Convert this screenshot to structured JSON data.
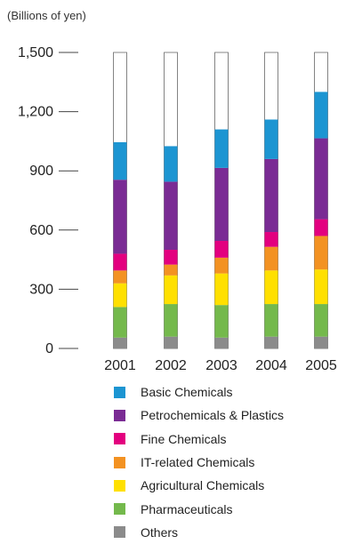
{
  "chart_data": {
    "type": "bar",
    "stacked": true,
    "unit_label": "(Billions of yen)",
    "categories": [
      "2001",
      "2002",
      "2003",
      "2004",
      "2005"
    ],
    "ylim": [
      0,
      1500
    ],
    "yticks": [
      0,
      300,
      600,
      900,
      1200,
      1500
    ],
    "ytick_labels": [
      "0",
      "300",
      "600",
      "900",
      "1,200",
      "1,500"
    ],
    "total_outline": 1500,
    "series": [
      {
        "name": "Others",
        "color": "#8b8b8b",
        "values": [
          55,
          60,
          55,
          60,
          60
        ]
      },
      {
        "name": "Pharmaceuticals",
        "color": "#74b94c",
        "values": [
          155,
          165,
          165,
          165,
          165
        ]
      },
      {
        "name": "Agricultural Chemicals",
        "color": "#ffe000",
        "values": [
          120,
          145,
          160,
          170,
          175
        ]
      },
      {
        "name": "IT-related Chemicals",
        "color": "#f39222",
        "values": [
          65,
          55,
          80,
          120,
          170
        ]
      },
      {
        "name": "Fine Chemicals",
        "color": "#e3007f",
        "values": [
          85,
          75,
          85,
          75,
          85
        ]
      },
      {
        "name": "Petrochemicals & Plastics",
        "color": "#7a2b94",
        "values": [
          375,
          345,
          370,
          370,
          410
        ]
      },
      {
        "name": "Basic Chemicals",
        "color": "#1c95d2",
        "values": [
          190,
          180,
          195,
          200,
          235
        ]
      }
    ]
  }
}
